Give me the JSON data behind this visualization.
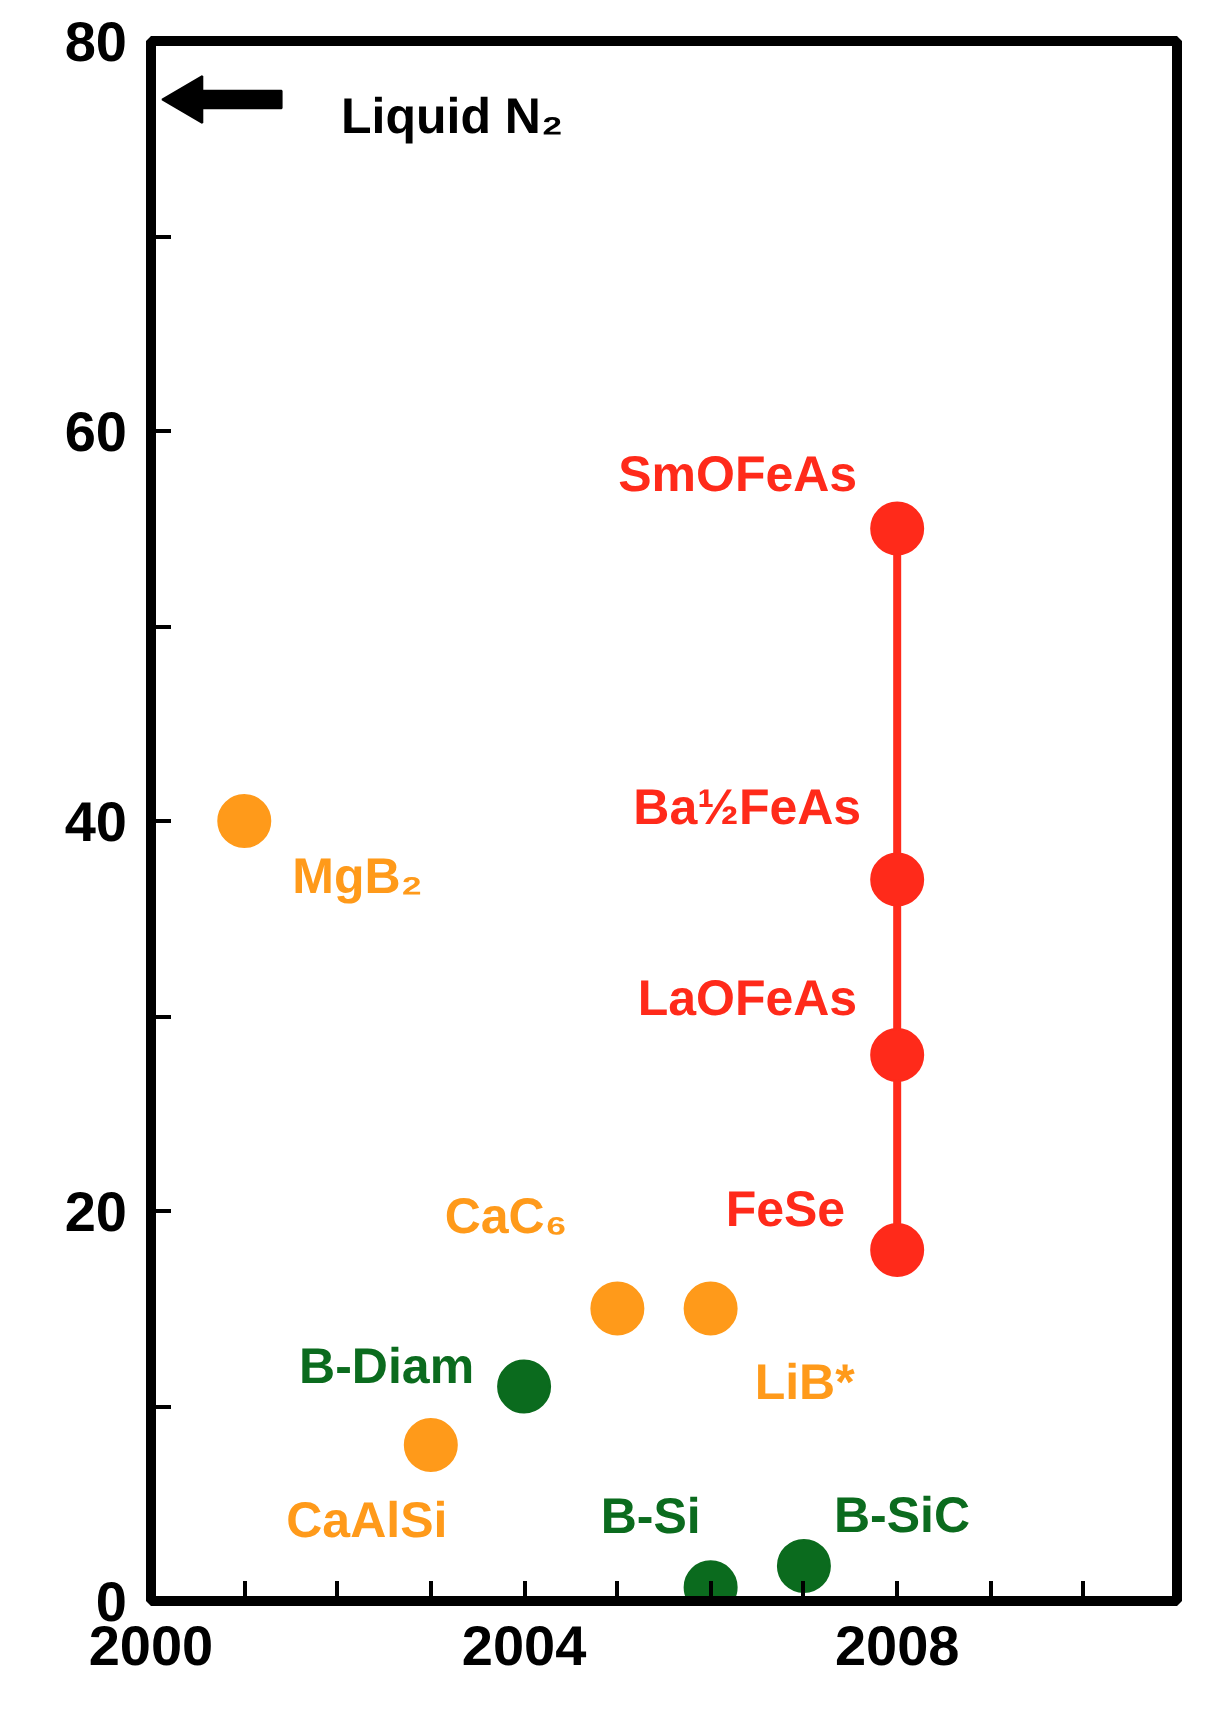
{
  "chart_data": {
    "type": "scatter",
    "xlim": [
      2000,
      2011
    ],
    "ylim": [
      0,
      80
    ],
    "xticks": [
      2000,
      {
        "value": 2001,
        "label": null
      },
      {
        "value": 2002,
        "label": null
      },
      {
        "value": 2003,
        "label": null
      },
      2004,
      {
        "value": 2005,
        "label": null
      },
      {
        "value": 2006,
        "label": null
      },
      {
        "value": 2007,
        "label": null
      },
      2008,
      {
        "value": 2009,
        "label": null
      },
      {
        "value": 2010,
        "label": null
      }
    ],
    "yticks": [
      0,
      {
        "value": 10,
        "label": null
      },
      20,
      {
        "value": 30,
        "label": null
      },
      40,
      {
        "value": 50,
        "label": null
      },
      60,
      {
        "value": 70,
        "label": null
      },
      80
    ],
    "marker": "circle",
    "series": [
      {
        "type": "line",
        "color": "#ff2a1a",
        "x": [
          2008,
          2008,
          2008,
          2008
        ],
        "values": [
          18,
          28,
          37,
          55
        ],
        "marker": "none"
      },
      {
        "name": "MgB₂",
        "color": "#ff9a1a",
        "x": [
          2001
        ],
        "values": [
          40
        ]
      },
      {
        "name": "CaAlSi",
        "color": "#ff9a1a",
        "x": [
          2003
        ],
        "values": [
          8
        ]
      },
      {
        "name": "B-Diam",
        "color": "#0b6b1e",
        "x": [
          2004
        ],
        "values": [
          11
        ]
      },
      {
        "name": "CaC₆",
        "color": "#ff9a1a",
        "x": [
          2005
        ],
        "values": [
          15
        ]
      },
      {
        "name": "LiB*",
        "color": "#ff9a1a",
        "x": [
          2006
        ],
        "values": [
          15
        ]
      },
      {
        "name": "B-Si",
        "color": "#0b6b1e",
        "x": [
          2006
        ],
        "values": [
          0.7
        ]
      },
      {
        "name": "B-SiC",
        "color": "#0b6b1e",
        "x": [
          2007
        ],
        "values": [
          1.8
        ]
      },
      {
        "name": "FeSe",
        "color": "#ff2a1a",
        "x": [
          2008
        ],
        "values": [
          18
        ]
      },
      {
        "name": "LaOFeAs",
        "color": "#ff2a1a",
        "x": [
          2008
        ],
        "values": [
          28
        ]
      },
      {
        "name": "Ba½FeAs",
        "color": "#ff2a1a",
        "x": [
          2008
        ],
        "values": [
          37
        ]
      },
      {
        "name": "SmOFeAs",
        "color": "#ff2a1a",
        "x": [
          2008
        ],
        "values": [
          55
        ]
      }
    ],
    "annotations": [
      "Liquid N₂"
    ]
  }
}
